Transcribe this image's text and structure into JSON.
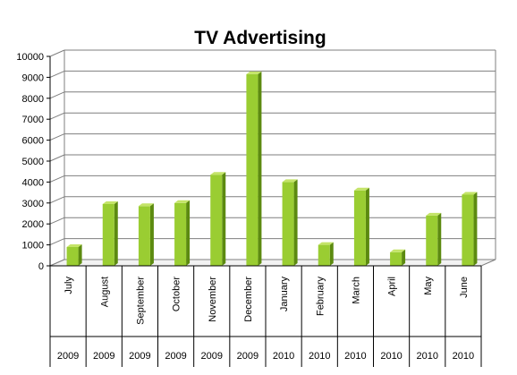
{
  "chart_data": {
    "type": "bar",
    "title": "TV Advertising",
    "xlabel": "",
    "ylabel": "",
    "ylim": [
      0,
      10000
    ],
    "yticks": [
      0,
      1000,
      2000,
      3000,
      4000,
      5000,
      6000,
      7000,
      8000,
      9000,
      10000
    ],
    "grid": true,
    "legend": "none",
    "bar_color": "#9ACD32",
    "bar_side_color": "#5C8A10",
    "bar_top_color": "#C4E468",
    "gridline_color": "#7F7F7F",
    "categories": [
      "July",
      "August",
      "September",
      "October",
      "November",
      "December",
      "January",
      "February",
      "March",
      "April",
      "May",
      "June"
    ],
    "years": [
      "2009",
      "2009",
      "2009",
      "2009",
      "2009",
      "2009",
      "2010",
      "2010",
      "2010",
      "2010",
      "2010",
      "2010"
    ],
    "values": [
      900,
      2950,
      2850,
      3000,
      4350,
      9150,
      4000,
      1000,
      3600,
      650,
      2400,
      3400
    ]
  }
}
